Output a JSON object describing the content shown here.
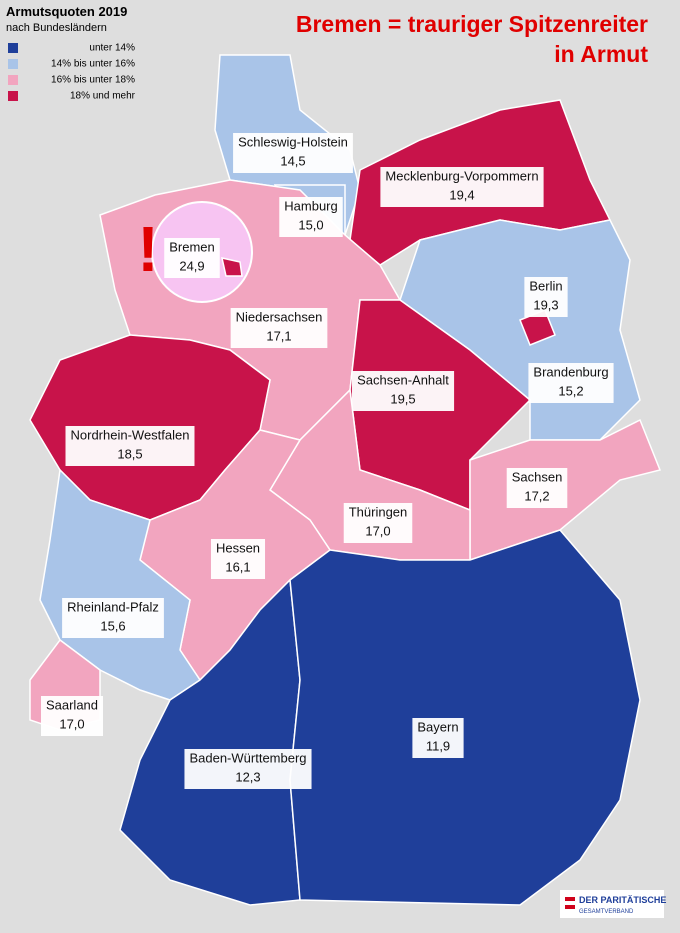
{
  "legend": {
    "title": "Armutsquoten 2019",
    "subtitle": "nach Bundesländern",
    "items": [
      {
        "label": "unter 14%",
        "color": "#1f3f9a"
      },
      {
        "label": "14% bis unter 16%",
        "color": "#a9c4e8"
      },
      {
        "label": "16% bis unter 18%",
        "color": "#f2a5bf"
      },
      {
        "label": "18% und mehr",
        "color": "#c8134a"
      }
    ]
  },
  "headline": [
    "Bremen = trauriger Spitzenreiter",
    "in Armut"
  ],
  "alert": "!",
  "regions": [
    {
      "name": "Schleswig-Holstein",
      "value": "14,5",
      "color": "#a9c4e8"
    },
    {
      "name": "Hamburg",
      "value": "15,0",
      "color": "#a9c4e8"
    },
    {
      "name": "Mecklenburg-Vorpommern",
      "value": "19,4",
      "color": "#c8134a"
    },
    {
      "name": "Bremen",
      "value": "24,9",
      "color": "#c8134a"
    },
    {
      "name": "Niedersachsen",
      "value": "17,1",
      "color": "#f2a5bf"
    },
    {
      "name": "Berlin",
      "value": "19,3",
      "color": "#c8134a"
    },
    {
      "name": "Brandenburg",
      "value": "15,2",
      "color": "#a9c4e8"
    },
    {
      "name": "Sachsen-Anhalt",
      "value": "19,5",
      "color": "#c8134a"
    },
    {
      "name": "Nordrhein-Westfalen",
      "value": "18,5",
      "color": "#c8134a"
    },
    {
      "name": "Sachsen",
      "value": "17,2",
      "color": "#f2a5bf"
    },
    {
      "name": "Thüringen",
      "value": "17,0",
      "color": "#f2a5bf"
    },
    {
      "name": "Hessen",
      "value": "16,1",
      "color": "#f2a5bf"
    },
    {
      "name": "Rheinland-Pfalz",
      "value": "15,6",
      "color": "#a9c4e8"
    },
    {
      "name": "Saarland",
      "value": "17,0",
      "color": "#f2a5bf"
    },
    {
      "name": "Baden-Württemberg",
      "value": "12,3",
      "color": "#1f3f9a"
    },
    {
      "name": "Bayern",
      "value": "11,9",
      "color": "#1f3f9a"
    }
  ],
  "logo": {
    "name": "DER PARITÄTISCHE",
    "sub": "GESAMTVERBAND"
  }
}
